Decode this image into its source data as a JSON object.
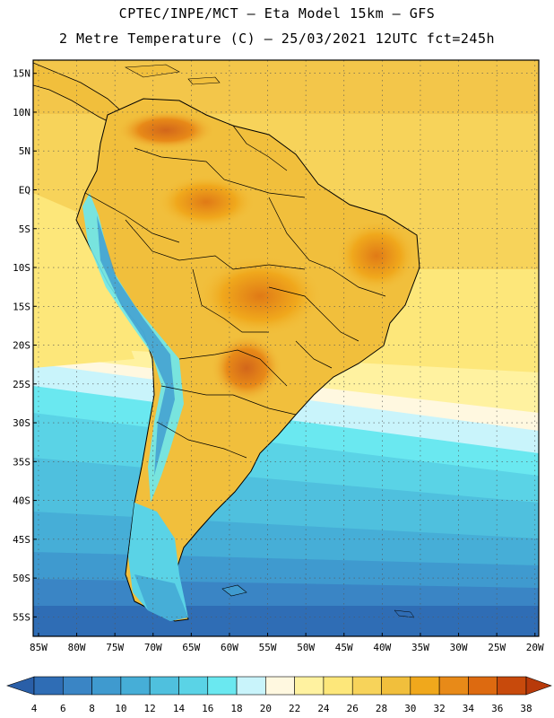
{
  "title_line1": "CPTEC/INPE/MCT –  Eta Model 15km – GFS",
  "title_line2": "2 Metre Temperature (C) – 25/03/2021 12UTC fct=245h",
  "lat_labels": [
    "15N",
    "10N",
    "5N",
    "EQ",
    "5S",
    "10S",
    "15S",
    "20S",
    "25S",
    "30S",
    "35S",
    "40S",
    "45S",
    "50S",
    "55S"
  ],
  "lat_values": [
    15,
    10,
    5,
    0,
    -5,
    -10,
    -15,
    -20,
    -25,
    -30,
    -35,
    -40,
    -45,
    -50,
    -55
  ],
  "lon_labels": [
    "85W",
    "80W",
    "75W",
    "70W",
    "65W",
    "60W",
    "55W",
    "50W",
    "45W",
    "40W",
    "35W",
    "30W",
    "25W",
    "20W"
  ],
  "lon_values": [
    -85,
    -80,
    -75,
    -70,
    -65,
    -60,
    -55,
    -50,
    -45,
    -40,
    -35,
    -30,
    -25,
    -20
  ],
  "map_extent": {
    "lon_min": -85.7,
    "lon_max": -19.5,
    "lat_min": -57.5,
    "lat_max": 16.7
  },
  "colorbar": {
    "labels": [
      "4",
      "6",
      "8",
      "10",
      "12",
      "14",
      "16",
      "18",
      "20",
      "22",
      "24",
      "26",
      "28",
      "30",
      "32",
      "34",
      "36",
      "38"
    ],
    "colors": [
      "#2f6db5",
      "#3a85c5",
      "#3f9acf",
      "#46aed7",
      "#4fc0de",
      "#5ad3e6",
      "#6ae8f0",
      "#c9f4fb",
      "#fff8e0",
      "#fff2a0",
      "#fde77a",
      "#f7d35a",
      "#f1bf3c",
      "#f0a81c",
      "#e88a18",
      "#dd6a10",
      "#c84a0c"
    ],
    "under_color": "#2a5fa8",
    "over_color": "#b83a0a"
  }
}
